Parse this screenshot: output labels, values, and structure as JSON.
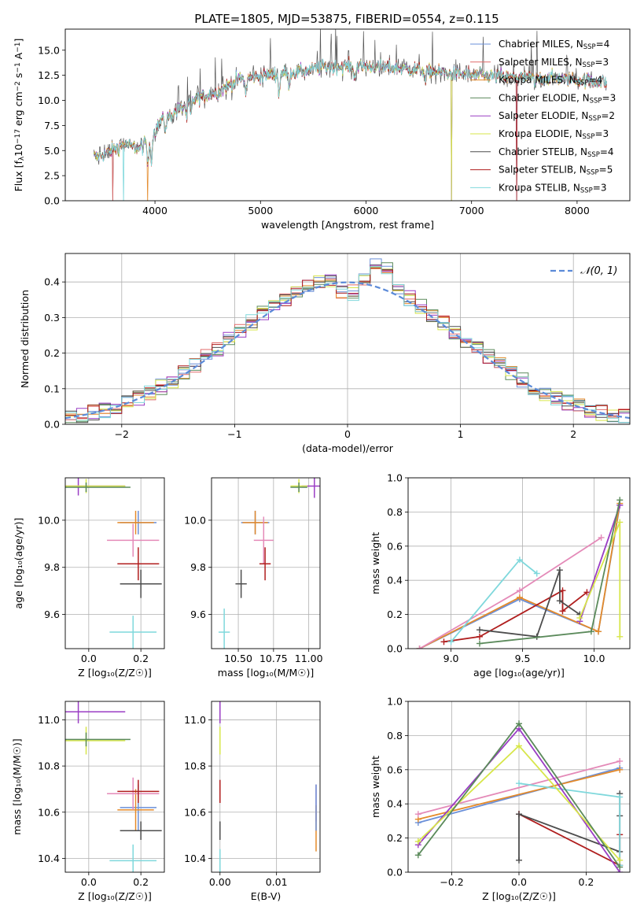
{
  "figure": {
    "title": "PLATE=1805, MJD=53875, FIBERID=0554, z=0.115"
  },
  "colors": {
    "Chabrier MILES": "#6a8fd8",
    "Salpeter MILES": "#e06a6a",
    "Kroupa MILES": "#e48a2a",
    "Chabrier ELODIE": "#5b8a5b",
    "Salpeter ELODIE": "#9a3dc4",
    "Kroupa ELODIE": "#d7e64a",
    "Chabrier STELIB": "#4d4d4d",
    "Salpeter STELIB": "#b01e1e",
    "Kroupa STELIB": "#7fd8dc",
    "pink": "#e48ab8",
    "normal": "#5b8ad8"
  },
  "chart_data": [
    {
      "id": "spectrum",
      "type": "line",
      "xlabel": "wavelength [Angstrom, rest frame]",
      "ylabel": "Flux [f",
      "ylabel_parts": [
        "Flux [f",
        "λ",
        "10",
        "−17",
        " erg cm",
        "−2",
        " s",
        "−1",
        " A",
        "−1",
        "]"
      ],
      "xlim": [
        3150,
        8500
      ],
      "ylim": [
        0,
        17.1
      ],
      "xticks": [
        4000,
        5000,
        6000,
        7000,
        8000
      ],
      "yticks": [
        0.0,
        2.5,
        5.0,
        7.5,
        10.0,
        12.5,
        15.0
      ],
      "ytick_labels": [
        "0.0",
        "2.5",
        "5.0",
        "7.5",
        "10.0",
        "12.5",
        "15.0"
      ],
      "legend_position": "right",
      "continuum_anchors": [
        [
          3400,
          4.2
        ],
        [
          3550,
          4.8
        ],
        [
          3700,
          5.6
        ],
        [
          3850,
          5.2
        ],
        [
          3950,
          6.0
        ],
        [
          4050,
          7.9
        ],
        [
          4200,
          8.9
        ],
        [
          4400,
          10.2
        ],
        [
          4600,
          10.9
        ],
        [
          4800,
          12.1
        ],
        [
          5000,
          12.4
        ],
        [
          5200,
          12.7
        ],
        [
          5400,
          12.9
        ],
        [
          5600,
          13.3
        ],
        [
          5800,
          13.4
        ],
        [
          6000,
          13.4
        ],
        [
          6300,
          13.2
        ],
        [
          6600,
          12.9
        ],
        [
          6900,
          12.6
        ],
        [
          7200,
          12.4
        ],
        [
          7500,
          12.3
        ],
        [
          7800,
          12.2
        ],
        [
          8050,
          12.0
        ],
        [
          8300,
          11.8
        ]
      ],
      "series": [
        {
          "name": "Chabrier MILES",
          "label": "Chabrier MILES, N",
          "sub": "SSP",
          "n": "=4",
          "color": "Chabrier MILES",
          "drop": [
            7430,
            0.0
          ]
        },
        {
          "name": "Salpeter MILES",
          "label": "Salpeter MILES, N",
          "sub": "SSP",
          "n": "=3",
          "color": "Salpeter MILES",
          "drop": [
            3600,
            0.0
          ]
        },
        {
          "name": "Kroupa MILES",
          "label": "Kroupa MILES, N",
          "sub": "SSP",
          "n": "=4",
          "color": "Kroupa MILES",
          "drop": [
            3930,
            0.0
          ]
        },
        {
          "name": "Chabrier ELODIE",
          "label": "Chabrier ELODIE, N",
          "sub": "SSP",
          "n": "=3",
          "color": "Chabrier ELODIE",
          "drop": [
            6810,
            0.0
          ]
        },
        {
          "name": "Salpeter ELODIE",
          "label": "Salpeter ELODIE, N",
          "sub": "SSP",
          "n": "=2",
          "color": "Salpeter ELODIE",
          "drop": [
            6810,
            0.0
          ]
        },
        {
          "name": "Kroupa ELODIE",
          "label": "Kroupa ELODIE, N",
          "sub": "SSP",
          "n": "=3",
          "color": "Kroupa ELODIE",
          "drop": [
            6810,
            0.0
          ]
        },
        {
          "name": "Chabrier STELIB",
          "label": "Chabrier STELIB, N",
          "sub": "SSP",
          "n": "=4",
          "color": "Chabrier STELIB",
          "drop": [
            3600,
            0.0
          ]
        },
        {
          "name": "Salpeter STELIB",
          "label": "Salpeter STELIB, N",
          "sub": "SSP",
          "n": "=5",
          "color": "Salpeter STELIB",
          "drop": [
            7430,
            0.0
          ]
        },
        {
          "name": "Kroupa STELIB",
          "label": "Kroupa STELIB, N",
          "sub": "SSP",
          "n": "=3",
          "color": "Kroupa STELIB",
          "drop": [
            3700,
            0.0
          ]
        }
      ]
    },
    {
      "id": "residuals",
      "type": "step",
      "xlabel": "(data-model)/error",
      "ylabel": "Normed distribution",
      "xlim": [
        -2.5,
        2.5
      ],
      "ylim": [
        0,
        0.48
      ],
      "xticks": [
        -2,
        -1,
        0,
        1,
        2
      ],
      "xtick_labels": [
        "−2",
        "−1",
        "0",
        "1",
        "2"
      ],
      "yticks": [
        0.0,
        0.1,
        0.2,
        0.3,
        0.4
      ],
      "ytick_labels": [
        "0.0",
        "0.1",
        "0.2",
        "0.3",
        "0.4"
      ],
      "grid": true,
      "legend_position": "top-right",
      "legend_label": "𝒩(0, 1)",
      "normal_color": "normal",
      "bin_width": 0.1,
      "series_colors": [
        "Chabrier MILES",
        "Salpeter MILES",
        "Kroupa MILES",
        "Chabrier ELODIE",
        "Salpeter ELODIE",
        "Kroupa ELODIE",
        "Chabrier STELIB",
        "Salpeter STELIB",
        "Kroupa STELIB"
      ]
    },
    {
      "id": "z-age",
      "type": "errorbar",
      "xlabel": "Z [log₁₀(Z/Z☉)]",
      "ylabel": "age  [log₁₀(age/yr)]",
      "xlim": [
        -0.09,
        0.29
      ],
      "ylim": [
        9.455,
        10.18
      ],
      "xticks": [
        0.0,
        0.2
      ],
      "xtick_labels": [
        "0.0",
        "0.2"
      ],
      "yticks": [
        9.6,
        9.8,
        10.0
      ],
      "ytick_labels": [
        "9.6",
        "9.8",
        "10.0"
      ],
      "grid": true,
      "points": [
        {
          "color": "Chabrier MILES",
          "x": 0.19,
          "xerr": 0.07,
          "y": 9.99,
          "yerr": 0.05
        },
        {
          "color": "Kroupa MILES",
          "x": 0.18,
          "xerr": 0.07,
          "y": 9.99,
          "yerr": 0.05
        },
        {
          "color": "pink",
          "x": 0.17,
          "xerr": 0.1,
          "y": 9.915,
          "yerr": 0.07
        },
        {
          "color": "Salpeter STELIB",
          "x": 0.19,
          "xerr": 0.08,
          "y": 9.815,
          "yerr": 0.07
        },
        {
          "color": "Chabrier STELIB",
          "x": 0.2,
          "xerr": 0.08,
          "y": 9.73,
          "yerr": 0.06
        },
        {
          "color": "Kroupa STELIB",
          "x": 0.17,
          "xerr": 0.09,
          "y": 9.525,
          "yerr": 0.07
        },
        {
          "color": "Salpeter ELODIE",
          "x": -0.04,
          "xerr": 0.18,
          "y": 10.145,
          "yerr": 0.04
        },
        {
          "color": "Kroupa ELODIE",
          "x": -0.01,
          "xerr": 0.15,
          "y": 10.145,
          "yerr": 0.03
        },
        {
          "color": "Chabrier ELODIE",
          "x": -0.01,
          "xerr": 0.17,
          "y": 10.14,
          "yerr": 0.02
        }
      ]
    },
    {
      "id": "mass-age",
      "type": "errorbar",
      "xlabel": "mass [log₁₀(M/M☉)]",
      "ylabel": "",
      "xlim": [
        10.31,
        11.08
      ],
      "ylim": [
        9.455,
        10.18
      ],
      "xticks": [
        10.5,
        10.75,
        11.0
      ],
      "xtick_labels": [
        "10.50",
        "10.75",
        "11.00"
      ],
      "yticks": [
        9.6,
        9.8,
        10.0
      ],
      "ytick_labels": [
        "9.6",
        "9.8",
        "10.0"
      ],
      "grid": true,
      "points": [
        {
          "color": "Chabrier MILES",
          "x": 10.62,
          "xerr": 0.1,
          "y": 9.99,
          "yerr": 0.05
        },
        {
          "color": "Kroupa MILES",
          "x": 10.62,
          "xerr": 0.09,
          "y": 9.99,
          "yerr": 0.05
        },
        {
          "color": "pink",
          "x": 10.68,
          "xerr": 0.07,
          "y": 9.915,
          "yerr": 0.1
        },
        {
          "color": "Salpeter STELIB",
          "x": 10.69,
          "xerr": 0.04,
          "y": 9.815,
          "yerr": 0.07
        },
        {
          "color": "Chabrier STELIB",
          "x": 10.52,
          "xerr": 0.04,
          "y": 9.73,
          "yerr": 0.06
        },
        {
          "color": "Kroupa STELIB",
          "x": 10.4,
          "xerr": 0.04,
          "y": 9.525,
          "yerr": 0.1
        },
        {
          "color": "Salpeter ELODIE",
          "x": 11.04,
          "xerr": 0.09,
          "y": 10.145,
          "yerr": 0.05
        },
        {
          "color": "Kroupa ELODIE",
          "x": 10.93,
          "xerr": 0.06,
          "y": 10.145,
          "yerr": 0.03
        },
        {
          "color": "Chabrier ELODIE",
          "x": 10.93,
          "xerr": 0.06,
          "y": 10.14,
          "yerr": 0.02
        }
      ]
    },
    {
      "id": "age-weight",
      "type": "line",
      "xlabel": "age  [log₁₀(age/yr)]",
      "ylabel": "mass weight",
      "xlim": [
        8.7,
        10.25
      ],
      "ylim": [
        0,
        1.0
      ],
      "xticks": [
        9.0,
        9.5,
        10.0
      ],
      "xtick_labels": [
        "9.0",
        "9.5",
        "10.0"
      ],
      "yticks": [
        0.0,
        0.2,
        0.4,
        0.6,
        0.8,
        1.0
      ],
      "ytick_labels": [
        "0.0",
        "0.2",
        "0.4",
        "0.6",
        "0.8",
        "1.0"
      ],
      "grid": true,
      "series": [
        {
          "color": "Chabrier MILES",
          "x": [
            8.78,
            9.48,
            10.03,
            10.18
          ],
          "y": [
            0.0,
            0.29,
            0.1,
            0.84
          ]
        },
        {
          "color": "Kroupa MILES",
          "x": [
            8.78,
            9.48,
            10.03,
            10.18
          ],
          "y": [
            0.0,
            0.3,
            0.1,
            0.85
          ]
        },
        {
          "color": "pink",
          "x": [
            8.78,
            9.48,
            10.05
          ],
          "y": [
            0.0,
            0.34,
            0.65
          ]
        },
        {
          "color": "Salpeter STELIB",
          "x": [
            8.95,
            9.2,
            9.78,
            9.78,
            9.95
          ],
          "y": [
            0.04,
            0.07,
            0.34,
            0.22,
            0.33
          ]
        },
        {
          "color": "Chabrier STELIB",
          "x": [
            9.2,
            9.6,
            9.76,
            9.76,
            9.9
          ],
          "y": [
            0.11,
            0.07,
            0.46,
            0.28,
            0.2
          ]
        },
        {
          "color": "Kroupa STELIB",
          "x": [
            9.0,
            9.48,
            9.6
          ],
          "y": [
            0.04,
            0.52,
            0.44
          ]
        },
        {
          "color": "Salpeter ELODIE",
          "x": [
            9.9,
            10.18
          ],
          "y": [
            0.16,
            0.84
          ]
        },
        {
          "color": "Kroupa ELODIE",
          "x": [
            9.9,
            10.18,
            10.18
          ],
          "y": [
            0.18,
            0.74,
            0.07
          ]
        },
        {
          "color": "Chabrier ELODIE",
          "x": [
            9.2,
            9.98,
            10.18
          ],
          "y": [
            0.03,
            0.1,
            0.87
          ]
        }
      ]
    },
    {
      "id": "z-mass",
      "type": "errorbar",
      "xlabel": "Z [log₁₀(Z/Z☉)]",
      "ylabel": "mass [log₁₀(M/M☉)]",
      "xlim": [
        -0.09,
        0.29
      ],
      "ylim": [
        10.34,
        11.08
      ],
      "xticks": [
        0.0,
        0.2
      ],
      "xtick_labels": [
        "0.0",
        "0.2"
      ],
      "yticks": [
        10.4,
        10.6,
        10.8,
        11.0
      ],
      "ytick_labels": [
        "10.4",
        "10.6",
        "10.8",
        "11.0"
      ],
      "grid": true,
      "points": [
        {
          "color": "Chabrier MILES",
          "x": 0.19,
          "xerr": 0.07,
          "y": 10.62,
          "yerr": 0.1
        },
        {
          "color": "Kroupa MILES",
          "x": 0.18,
          "xerr": 0.07,
          "y": 10.61,
          "yerr": 0.09
        },
        {
          "color": "pink",
          "x": 0.17,
          "xerr": 0.1,
          "y": 10.68,
          "yerr": 0.07
        },
        {
          "color": "Salpeter STELIB",
          "x": 0.19,
          "xerr": 0.08,
          "y": 10.69,
          "yerr": 0.05
        },
        {
          "color": "Chabrier STELIB",
          "x": 0.2,
          "xerr": 0.08,
          "y": 10.52,
          "yerr": 0.04
        },
        {
          "color": "Kroupa STELIB",
          "x": 0.17,
          "xerr": 0.09,
          "y": 10.39,
          "yerr": 0.07
        },
        {
          "color": "Salpeter ELODIE",
          "x": -0.04,
          "xerr": 0.18,
          "y": 11.035,
          "yerr": 0.05
        },
        {
          "color": "Kroupa ELODIE",
          "x": -0.01,
          "xerr": 0.15,
          "y": 10.91,
          "yerr": 0.06
        },
        {
          "color": "Chabrier ELODIE",
          "x": -0.01,
          "xerr": 0.17,
          "y": 10.915,
          "yerr": 0.03
        }
      ]
    },
    {
      "id": "ebv-mass",
      "type": "errorbar",
      "xlabel": "E(B-V)",
      "ylabel": "",
      "xlim": [
        -0.0015,
        0.0177
      ],
      "ylim": [
        10.34,
        11.08
      ],
      "xticks": [
        0.0,
        0.01
      ],
      "xtick_labels": [
        "0.00",
        "0.01"
      ],
      "yticks": [
        10.4,
        10.6,
        10.8,
        11.0
      ],
      "ytick_labels": [
        "10.4",
        "10.6",
        "10.8",
        "11.0"
      ],
      "grid": true,
      "points": [
        {
          "color": "Salpeter ELODIE",
          "x": 0.0,
          "xerr": 0,
          "y": 11.035,
          "yerr": 0.05
        },
        {
          "color": "Kroupa ELODIE",
          "x": 0.0,
          "xerr": 0,
          "y": 10.91,
          "yerr": 0.06
        },
        {
          "color": "Salpeter STELIB",
          "x": 0.0,
          "xerr": 0,
          "y": 10.69,
          "yerr": 0.05
        },
        {
          "color": "Chabrier STELIB",
          "x": 0.0,
          "xerr": 0,
          "y": 10.52,
          "yerr": 0.04
        },
        {
          "color": "Kroupa STELIB",
          "x": 0.0,
          "xerr": 0,
          "y": 10.39,
          "yerr": 0.05
        },
        {
          "color": "pink",
          "x": 0.017,
          "xerr": 0,
          "y": 10.64,
          "yerr": 0.08
        },
        {
          "color": "Kroupa MILES",
          "x": 0.017,
          "xerr": 0,
          "y": 10.53,
          "yerr": 0.1
        },
        {
          "color": "Chabrier MILES",
          "x": 0.017,
          "xerr": 0,
          "y": 10.62,
          "yerr": 0.1
        }
      ]
    },
    {
      "id": "z-weight",
      "type": "line",
      "xlabel": "Z [log₁₀(Z/Z☉)]",
      "ylabel": "mass weight",
      "xlim": [
        -0.33,
        0.33
      ],
      "ylim": [
        0,
        1.0
      ],
      "xticks": [
        -0.2,
        0.0,
        0.2
      ],
      "xtick_labels": [
        "−0.2",
        "0.0",
        "0.2"
      ],
      "yticks": [
        0.0,
        0.2,
        0.4,
        0.6,
        0.8,
        1.0
      ],
      "ytick_labels": [
        "0.0",
        "0.2",
        "0.4",
        "0.6",
        "0.8",
        "1.0"
      ],
      "grid": true,
      "series": [
        {
          "color": "Chabrier MILES",
          "x": [
            -0.3,
            0.3
          ],
          "y": [
            0.29,
            0.61
          ]
        },
        {
          "color": "Kroupa MILES",
          "x": [
            -0.3,
            0.3
          ],
          "y": [
            0.31,
            0.6
          ]
        },
        {
          "color": "pink",
          "x": [
            -0.3,
            0.3
          ],
          "y": [
            0.34,
            0.65
          ]
        },
        {
          "color": "Salpeter STELIB",
          "x": [
            0.0,
            0.0,
            0.3,
            0.3
          ],
          "y": [
            0.34,
            0.34,
            0.04,
            0.22
          ]
        },
        {
          "color": "Chabrier STELIB",
          "x": [
            0.0,
            0.0,
            0.3,
            0.3,
            0.3
          ],
          "y": [
            0.07,
            0.34,
            0.12,
            0.46,
            0.33
          ]
        },
        {
          "color": "Kroupa STELIB",
          "x": [
            0.0,
            0.3,
            0.3
          ],
          "y": [
            0.52,
            0.44,
            0.04
          ]
        },
        {
          "color": "Salpeter ELODIE",
          "x": [
            -0.3,
            0.0,
            0.3
          ],
          "y": [
            0.16,
            0.84,
            0.0
          ]
        },
        {
          "color": "Kroupa ELODIE",
          "x": [
            -0.3,
            0.0,
            0.3
          ],
          "y": [
            0.18,
            0.74,
            0.07
          ]
        },
        {
          "color": "Chabrier ELODIE",
          "x": [
            -0.3,
            0.0,
            0.3
          ],
          "y": [
            0.1,
            0.87,
            0.03
          ]
        }
      ]
    }
  ]
}
